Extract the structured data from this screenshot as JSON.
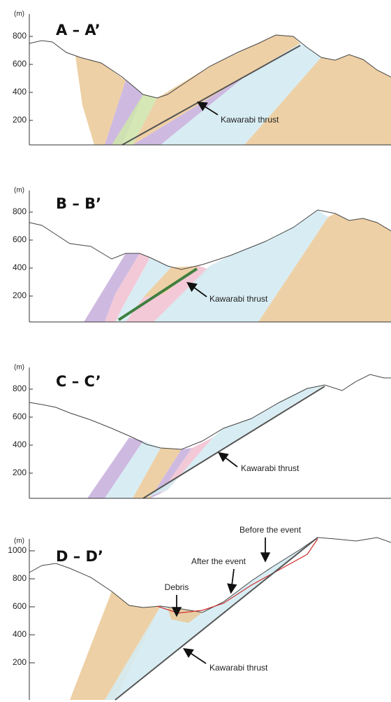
{
  "panels": [
    {
      "title": "A – A’",
      "unit": "(m)",
      "yticks": [
        800,
        600,
        400,
        200
      ],
      "annotations": [
        "Kawarabi thrust"
      ]
    },
    {
      "title": "B – B’",
      "unit": "(m)",
      "yticks": [
        800,
        600,
        400,
        200
      ],
      "annotations": [
        "Kawarabi thrust"
      ]
    },
    {
      "title": "C – C’",
      "unit": "(m)",
      "yticks": [
        800,
        600,
        400,
        200
      ],
      "annotations": [
        "Kawarabi thrust"
      ]
    },
    {
      "title": "D – D’",
      "unit": "(m)",
      "yticks": [
        1000,
        800,
        600,
        400,
        200
      ],
      "annotations": [
        "Before the event",
        "After the event",
        "Debris",
        "Kawarabi thrust"
      ]
    }
  ]
}
